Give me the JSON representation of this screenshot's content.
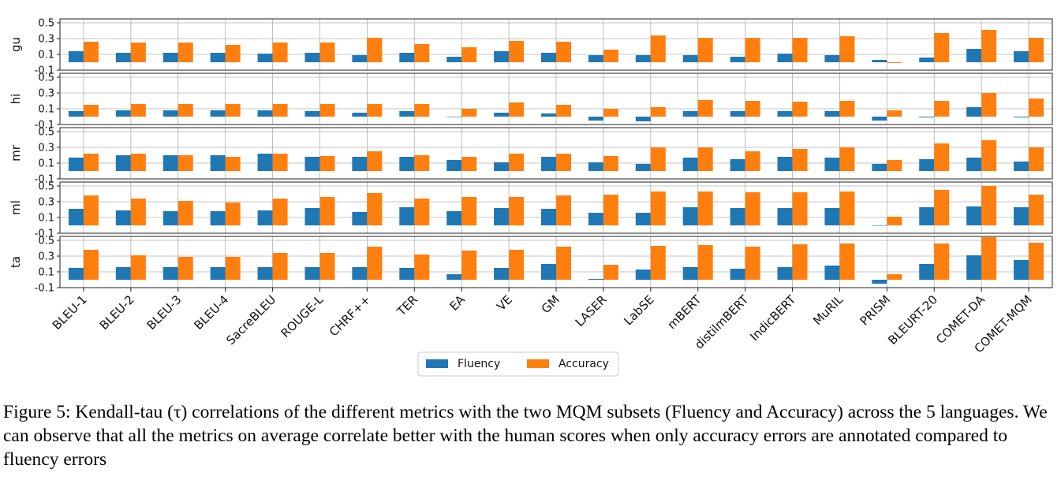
{
  "chart_data": {
    "type": "bar",
    "layout": "faceted-rows",
    "categories": [
      "BLEU-1",
      "BLEU-2",
      "BLEU-3",
      "BLEU-4",
      "SacreBLEU",
      "ROUGE-L",
      "CHRF++",
      "TER",
      "EA",
      "VE",
      "GM",
      "LASER",
      "LabSE",
      "mBERT",
      "distilmBERT",
      "IndicBERT",
      "MuRIL",
      "PRISM",
      "BLEURT-20",
      "COMET-DA",
      "COMET-MQM"
    ],
    "legend": [
      "Fluency",
      "Accuracy"
    ],
    "legend_position": "bottom-center",
    "colors": {
      "Fluency": "#1f77b4",
      "Accuracy": "#ff7f0e"
    },
    "ylim": [
      -0.1,
      0.55
    ],
    "yticks": [
      "0.5",
      "0.3",
      "0.1",
      "-0.1"
    ],
    "grid": true,
    "panels": [
      {
        "language": "gu",
        "fluency": [
          0.14,
          0.12,
          0.12,
          0.12,
          0.11,
          0.12,
          0.09,
          0.12,
          0.07,
          0.14,
          0.12,
          0.09,
          0.09,
          0.09,
          0.07,
          0.11,
          0.09,
          0.03,
          0.06,
          0.17,
          0.14
        ],
        "accuracy": [
          0.26,
          0.25,
          0.25,
          0.22,
          0.25,
          0.25,
          0.31,
          0.23,
          0.19,
          0.27,
          0.26,
          0.16,
          0.34,
          0.31,
          0.31,
          0.31,
          0.33,
          -0.01,
          0.37,
          0.41,
          0.31
        ]
      },
      {
        "language": "hi",
        "fluency": [
          0.07,
          0.08,
          0.08,
          0.08,
          0.08,
          0.07,
          0.05,
          0.07,
          0.0,
          0.05,
          0.04,
          -0.05,
          -0.06,
          0.07,
          0.07,
          0.07,
          0.07,
          -0.05,
          -0.01,
          0.12,
          -0.01
        ],
        "accuracy": [
          0.15,
          0.16,
          0.16,
          0.16,
          0.16,
          0.16,
          0.16,
          0.16,
          0.1,
          0.18,
          0.15,
          0.1,
          0.12,
          0.21,
          0.2,
          0.19,
          0.2,
          0.08,
          0.2,
          0.3,
          0.23
        ]
      },
      {
        "language": "mr",
        "fluency": [
          0.17,
          0.2,
          0.2,
          0.2,
          0.22,
          0.18,
          0.18,
          0.18,
          0.14,
          0.11,
          0.18,
          0.11,
          0.09,
          0.17,
          0.15,
          0.18,
          0.17,
          0.09,
          0.15,
          0.17,
          0.12
        ],
        "accuracy": [
          0.22,
          0.22,
          0.2,
          0.18,
          0.22,
          0.19,
          0.25,
          0.2,
          0.18,
          0.22,
          0.22,
          0.19,
          0.3,
          0.3,
          0.25,
          0.28,
          0.3,
          0.14,
          0.35,
          0.39,
          0.3
        ]
      },
      {
        "language": "ml",
        "fluency": [
          0.21,
          0.19,
          0.18,
          0.18,
          0.19,
          0.22,
          0.17,
          0.23,
          0.18,
          0.22,
          0.21,
          0.16,
          0.16,
          0.23,
          0.22,
          0.22,
          0.22,
          0.0,
          0.23,
          0.24,
          0.23
        ],
        "accuracy": [
          0.38,
          0.34,
          0.31,
          0.29,
          0.34,
          0.36,
          0.41,
          0.34,
          0.36,
          0.36,
          0.38,
          0.39,
          0.43,
          0.43,
          0.42,
          0.42,
          0.43,
          0.11,
          0.45,
          0.5,
          0.39
        ]
      },
      {
        "language": "ta",
        "fluency": [
          0.15,
          0.16,
          0.16,
          0.16,
          0.16,
          0.16,
          0.16,
          0.15,
          0.07,
          0.15,
          0.2,
          0.01,
          0.13,
          0.16,
          0.14,
          0.16,
          0.18,
          -0.05,
          0.2,
          0.31,
          0.25
        ],
        "accuracy": [
          0.38,
          0.31,
          0.29,
          0.29,
          0.34,
          0.34,
          0.42,
          0.32,
          0.37,
          0.38,
          0.42,
          0.19,
          0.43,
          0.44,
          0.42,
          0.45,
          0.46,
          0.07,
          0.46,
          0.54,
          0.47
        ]
      }
    ]
  },
  "caption": "Figure 5: Kendall-tau (τ) correlations of the different metrics with the two MQM subsets (Fluency and Accuracy) across the 5 languages. We can observe that all the metrics on average correlate better with the human scores when only accuracy errors are annotated compared to fluency errors"
}
